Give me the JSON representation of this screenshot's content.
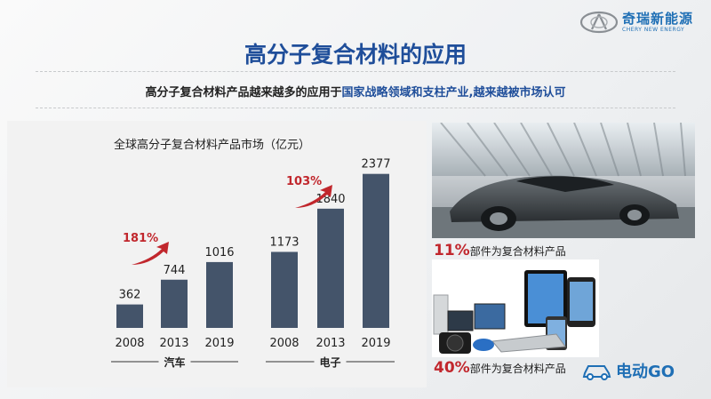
{
  "brand": {
    "name_cn": "奇瑞新能源",
    "name_en": "CHERY NEW ENERGY",
    "color": "#1f6fb5"
  },
  "slide": {
    "title": "高分子复合材料的应用",
    "subtitle_part1": "高分子复合材料产品越来越多的应用于",
    "subtitle_part2": "国家战略领域和支柱产业,越来越被市场认可"
  },
  "chart_data": {
    "type": "bar",
    "title": "全球高分子复合材料产品市场（亿元）",
    "groups": [
      {
        "name": "汽车",
        "categories": [
          "2008",
          "2013",
          "2019"
        ],
        "values": [
          362,
          744,
          1016
        ],
        "growth_label": "181%"
      },
      {
        "name": "电子",
        "categories": [
          "2008",
          "2013",
          "2019"
        ],
        "values": [
          1173,
          1840,
          2377
        ],
        "growth_label": "103%"
      }
    ],
    "ylim": [
      0,
      2400
    ],
    "bar_color": "#44546a",
    "growth_color": "#c1272d",
    "grid": false
  },
  "images": {
    "car": "sports-car-photo",
    "devices": "electronic-devices-photo"
  },
  "captions": {
    "car_pct": "11%",
    "car_text": "部件为复合材料产品",
    "devices_pct": "40%",
    "devices_text": "部件为复合材料产品"
  },
  "watermark": {
    "text": "电动GO",
    "icon": "car-icon"
  }
}
